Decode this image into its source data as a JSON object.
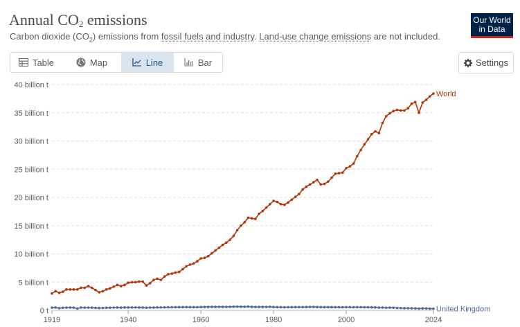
{
  "header": {
    "title_main": "Annual CO",
    "title_sub": "2",
    "title_end": " emissions",
    "subtitle_1": "Carbon dioxide (CO",
    "subtitle_sub": "2",
    "subtitle_2": ") emissions from ",
    "subtitle_link1": "fossil fuels and industry",
    "subtitle_3": ". ",
    "subtitle_link2": "Land-use change emissions",
    "subtitle_4": " are not included."
  },
  "logo": {
    "line1": "Our World",
    "line2": "in Data",
    "bg": "#002147",
    "accent": "#ce261e"
  },
  "tabs": [
    {
      "label": "Table",
      "icon": "table-icon",
      "active": false
    },
    {
      "label": "Map",
      "icon": "globe-icon",
      "active": false
    },
    {
      "label": "Line",
      "icon": "line-chart-icon",
      "active": true
    },
    {
      "label": "Bar",
      "icon": "bar-chart-icon",
      "active": false
    }
  ],
  "settings": {
    "label": "Settings",
    "icon": "gear-icon"
  },
  "chart_data": {
    "type": "line",
    "y_tick_labels": [
      "0 t",
      "5 billion t",
      "10 billion t",
      "15 billion t",
      "20 billion t",
      "25 billion t",
      "30 billion t",
      "35 billion t",
      "40 billion t"
    ],
    "y_tick_values": [
      0,
      5,
      10,
      15,
      20,
      25,
      30,
      35,
      40
    ],
    "ylim": [
      0,
      40
    ],
    "xlim": [
      1919,
      2024
    ],
    "x_tick_labels": [
      "1919",
      "1940",
      "1960",
      "1980",
      "2000",
      "2024"
    ],
    "x_tick_values": [
      1919,
      1940,
      1960,
      1980,
      2000,
      2024
    ],
    "grid": true,
    "series": [
      {
        "name": "World",
        "color": "#b13507",
        "x": [
          1919,
          1920,
          1921,
          1922,
          1923,
          1924,
          1925,
          1926,
          1927,
          1928,
          1929,
          1930,
          1931,
          1932,
          1933,
          1934,
          1935,
          1936,
          1937,
          1938,
          1939,
          1940,
          1941,
          1942,
          1943,
          1944,
          1945,
          1946,
          1947,
          1948,
          1949,
          1950,
          1951,
          1952,
          1953,
          1954,
          1955,
          1956,
          1957,
          1958,
          1959,
          1960,
          1961,
          1962,
          1963,
          1964,
          1965,
          1966,
          1967,
          1968,
          1969,
          1970,
          1971,
          1972,
          1973,
          1974,
          1975,
          1976,
          1977,
          1978,
          1979,
          1980,
          1981,
          1982,
          1983,
          1984,
          1985,
          1986,
          1987,
          1988,
          1989,
          1990,
          1991,
          1992,
          1993,
          1994,
          1995,
          1996,
          1997,
          1998,
          1999,
          2000,
          2001,
          2002,
          2003,
          2004,
          2005,
          2006,
          2007,
          2008,
          2009,
          2010,
          2011,
          2012,
          2013,
          2014,
          2015,
          2016,
          2017,
          2018,
          2019,
          2020,
          2021,
          2022,
          2023,
          2024
        ],
        "values": [
          3.0,
          3.4,
          3.1,
          3.3,
          3.7,
          3.7,
          3.7,
          3.7,
          4.0,
          4.0,
          4.3,
          4.0,
          3.6,
          3.2,
          3.4,
          3.7,
          3.9,
          4.2,
          4.5,
          4.3,
          4.5,
          4.9,
          5.0,
          5.0,
          5.1,
          5.1,
          4.4,
          4.8,
          5.4,
          5.6,
          5.4,
          6.0,
          6.4,
          6.5,
          6.7,
          6.8,
          7.3,
          7.8,
          8.1,
          8.3,
          8.7,
          9.2,
          9.3,
          9.6,
          10.1,
          10.6,
          11.1,
          11.6,
          12.0,
          12.5,
          13.2,
          14.2,
          15.0,
          15.6,
          16.4,
          16.3,
          16.2,
          17.1,
          17.6,
          18.2,
          18.8,
          19.4,
          19.2,
          18.8,
          18.7,
          19.1,
          19.6,
          20.1,
          20.6,
          21.4,
          21.9,
          22.3,
          22.7,
          23.1,
          22.3,
          22.4,
          22.8,
          23.5,
          24.2,
          24.3,
          24.4,
          25.2,
          25.5,
          26.0,
          27.3,
          28.4,
          29.4,
          30.3,
          31.2,
          31.7,
          31.4,
          33.2,
          34.4,
          34.9,
          35.3,
          35.5,
          35.4,
          35.4,
          35.8,
          36.6,
          36.9,
          35.0,
          36.8,
          37.3,
          37.9,
          38.4
        ]
      },
      {
        "name": "United Kingdom",
        "color": "#4c6a9c",
        "x": [
          1919,
          1920,
          1921,
          1922,
          1923,
          1924,
          1925,
          1926,
          1927,
          1928,
          1929,
          1930,
          1931,
          1932,
          1933,
          1934,
          1935,
          1936,
          1937,
          1938,
          1939,
          1940,
          1941,
          1942,
          1943,
          1944,
          1945,
          1946,
          1947,
          1948,
          1949,
          1950,
          1951,
          1952,
          1953,
          1954,
          1955,
          1956,
          1957,
          1958,
          1959,
          1960,
          1961,
          1962,
          1963,
          1964,
          1965,
          1966,
          1967,
          1968,
          1969,
          1970,
          1971,
          1972,
          1973,
          1974,
          1975,
          1976,
          1977,
          1978,
          1979,
          1980,
          1981,
          1982,
          1983,
          1984,
          1985,
          1986,
          1987,
          1988,
          1989,
          1990,
          1991,
          1992,
          1993,
          1994,
          1995,
          1996,
          1997,
          1998,
          1999,
          2000,
          2001,
          2002,
          2003,
          2004,
          2005,
          2006,
          2007,
          2008,
          2009,
          2010,
          2011,
          2012,
          2013,
          2014,
          2015,
          2016,
          2017,
          2018,
          2019,
          2020,
          2021,
          2022,
          2023,
          2024
        ],
        "values": [
          0.48,
          0.51,
          0.39,
          0.45,
          0.48,
          0.5,
          0.48,
          0.33,
          0.5,
          0.47,
          0.49,
          0.47,
          0.44,
          0.42,
          0.43,
          0.46,
          0.47,
          0.49,
          0.51,
          0.48,
          0.51,
          0.51,
          0.52,
          0.52,
          0.51,
          0.5,
          0.46,
          0.49,
          0.5,
          0.52,
          0.52,
          0.53,
          0.55,
          0.55,
          0.56,
          0.57,
          0.58,
          0.58,
          0.57,
          0.57,
          0.56,
          0.59,
          0.6,
          0.61,
          0.62,
          0.62,
          0.63,
          0.62,
          0.61,
          0.63,
          0.65,
          0.66,
          0.65,
          0.64,
          0.67,
          0.62,
          0.6,
          0.61,
          0.61,
          0.61,
          0.64,
          0.59,
          0.57,
          0.56,
          0.55,
          0.56,
          0.57,
          0.58,
          0.58,
          0.58,
          0.59,
          0.6,
          0.61,
          0.59,
          0.58,
          0.57,
          0.56,
          0.58,
          0.56,
          0.56,
          0.55,
          0.56,
          0.57,
          0.55,
          0.56,
          0.56,
          0.55,
          0.55,
          0.54,
          0.53,
          0.48,
          0.5,
          0.46,
          0.48,
          0.47,
          0.43,
          0.41,
          0.39,
          0.38,
          0.37,
          0.36,
          0.32,
          0.34,
          0.34,
          0.31,
          0.3
        ]
      }
    ]
  }
}
